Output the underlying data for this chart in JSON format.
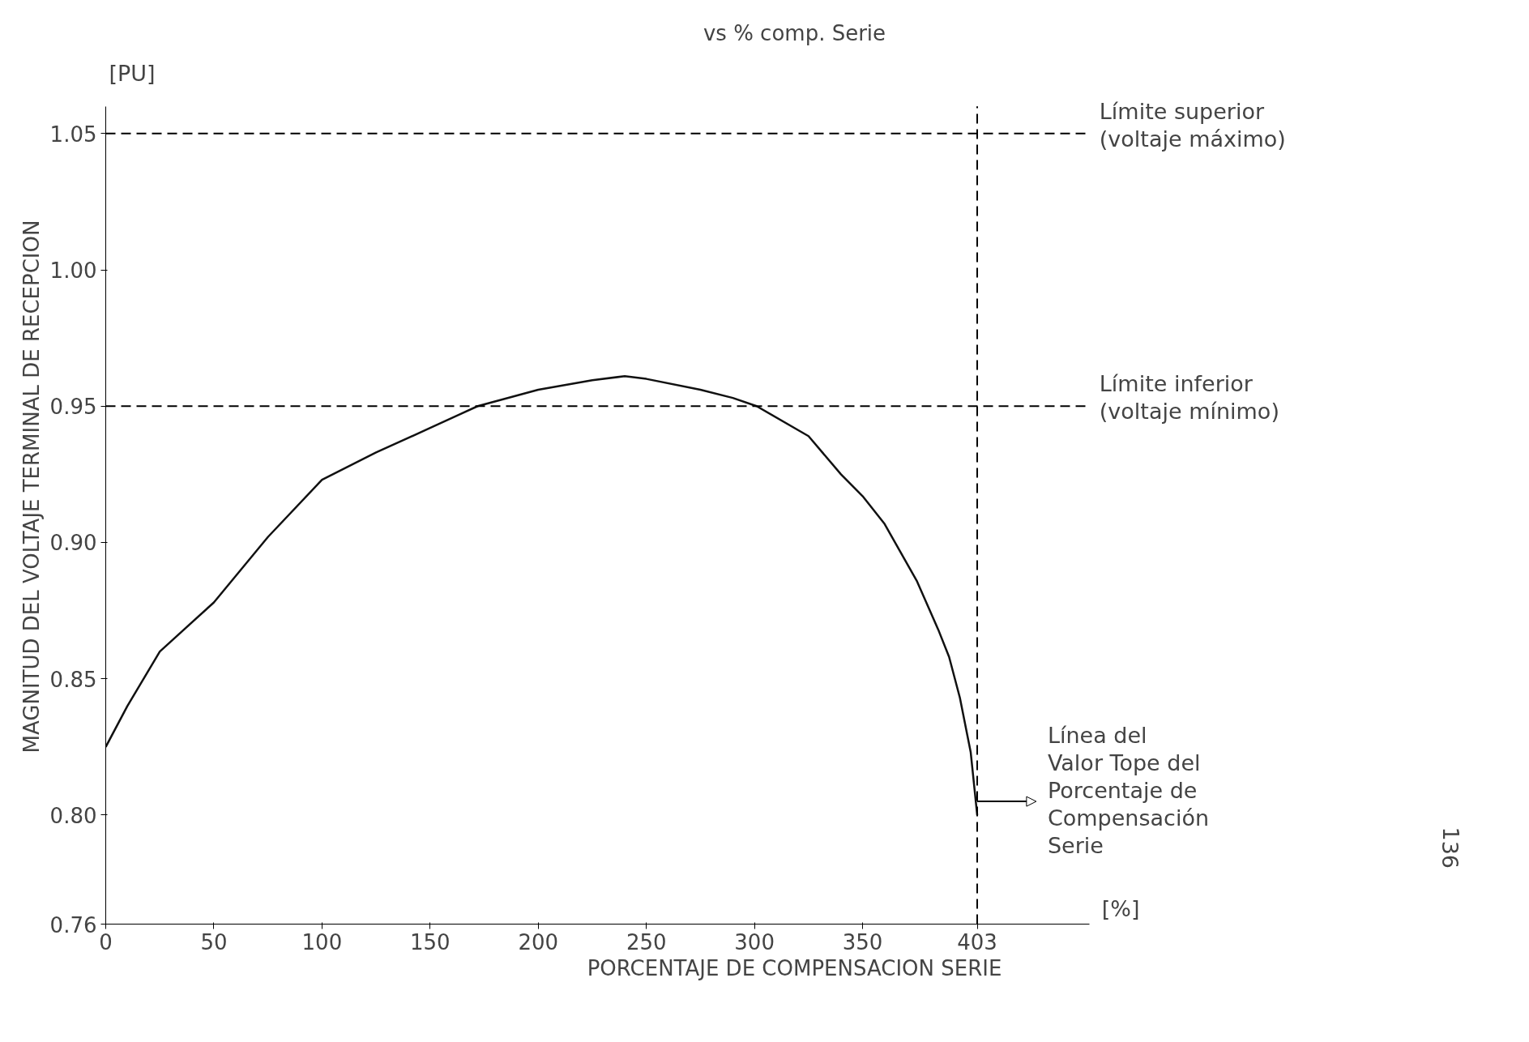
{
  "chart_data": {
    "type": "line",
    "title": "vs % comp. Serie",
    "xlabel": "PORCENTAJE DE COMPENSACION SERIE",
    "ylabel": "MAGNITUD DEL VOLTAJE TERMINAL DE RECEPCION",
    "x": [
      0,
      10,
      25,
      50,
      75,
      100,
      125,
      150,
      172,
      200,
      225,
      240,
      250,
      275,
      290,
      301,
      325,
      340,
      350,
      360,
      375,
      385,
      390,
      395,
      400,
      403
    ],
    "series": [
      {
        "color": "#111111",
        "values": [
          0.825,
          0.84,
          0.86,
          0.878,
          0.902,
          0.923,
          0.933,
          0.942,
          0.95,
          0.956,
          0.9595,
          0.961,
          0.96,
          0.956,
          0.953,
          0.95,
          0.939,
          0.925,
          0.917,
          0.907,
          0.886,
          0.868,
          0.858,
          0.843,
          0.823,
          0.8
        ]
      }
    ],
    "xlim": [
      0,
      455
    ],
    "ylim": [
      0.76,
      1.06
    ],
    "xticks": [
      0,
      50,
      100,
      150,
      200,
      250,
      300,
      350,
      403
    ],
    "yticks": [
      0.76,
      {
        "value": 0.8,
        "label": "0.80"
      },
      0.85,
      {
        "value": 0.9,
        "label": "0.90"
      },
      0.95,
      {
        "value": 1.0,
        "label": "1.00"
      },
      1.05
    ],
    "ref_lines": [
      {
        "axis": "y",
        "value": 1.05,
        "label": "Límite superior\n(voltaje máximo)",
        "line_style": "dashed"
      },
      {
        "axis": "y",
        "value": 0.95,
        "label": "Límite inferior\n(voltaje mínimo)",
        "line_style": "dashed"
      },
      {
        "axis": "x",
        "value": 403,
        "label": null,
        "line_style": "dashed"
      }
    ],
    "annotations": [
      {
        "text": "Línea del\nValor Tope del\nPorcentaje de\nCompensación\nSerie",
        "x": 403,
        "y": 0.805
      },
      "[PU]",
      "[%]",
      "136"
    ],
    "grid": false,
    "marker": "none",
    "line_style": "solid"
  }
}
